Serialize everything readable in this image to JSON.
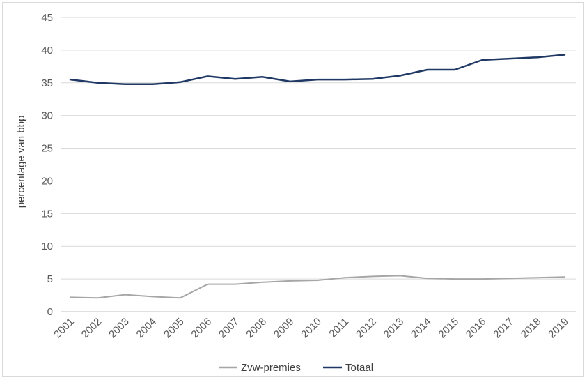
{
  "chart_data": {
    "type": "line",
    "title": "",
    "xlabel": "",
    "ylabel": "percentage van bbp",
    "ylim": [
      0,
      45
    ],
    "yticks": [
      "0",
      "5",
      "10",
      "15",
      "20",
      "25",
      "30",
      "35",
      "40",
      "45"
    ],
    "grid": true,
    "legend_position": "bottom",
    "categories": [
      "2001",
      "2002",
      "2003",
      "2004",
      "2005",
      "2006",
      "2007",
      "2008",
      "2009",
      "2010",
      "2011",
      "2012",
      "2013",
      "2014",
      "2015",
      "2016",
      "2017",
      "2018",
      "2019"
    ],
    "series": [
      {
        "name": "Zvw-premies",
        "color": "#a6a6a6",
        "values": [
          2.2,
          2.1,
          2.6,
          2.3,
          2.1,
          4.2,
          4.2,
          4.5,
          4.7,
          4.8,
          5.2,
          5.4,
          5.5,
          5.1,
          5.0,
          5.0,
          5.1,
          5.2,
          5.3
        ]
      },
      {
        "name": "Totaal",
        "color": "#1f3864",
        "values": [
          35.5,
          35.0,
          34.8,
          34.8,
          35.1,
          36.0,
          35.6,
          35.9,
          35.2,
          35.5,
          35.5,
          35.6,
          36.1,
          37.0,
          37.0,
          38.5,
          38.7,
          38.9,
          39.3
        ]
      }
    ]
  }
}
